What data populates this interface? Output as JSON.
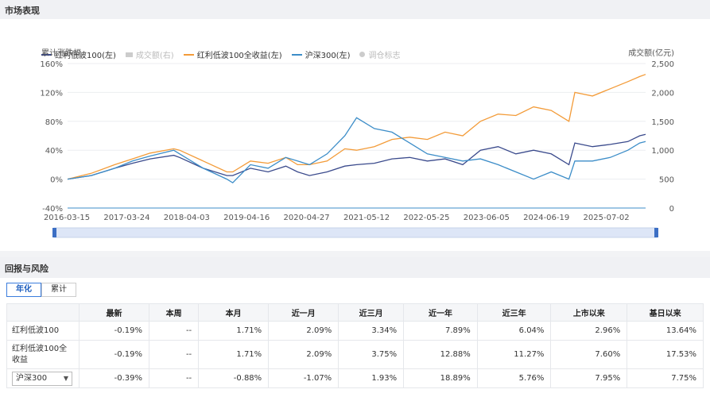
{
  "market_section": {
    "title": "市场表现"
  },
  "return_section": {
    "title": "回报与风险"
  },
  "legend": [
    {
      "label": "红利低波100(左)",
      "color": "#3a4a8c",
      "type": "line",
      "active": true
    },
    {
      "label": "成交额(右)",
      "color": "#cccccc",
      "type": "bar",
      "active": false
    },
    {
      "label": "红利低波100全收益(左)",
      "color": "#f39b38",
      "type": "line",
      "active": true
    },
    {
      "label": "沪深300(左)",
      "color": "#3c8dc8",
      "type": "line",
      "active": true
    },
    {
      "label": "调仓标志",
      "color": "#cccccc",
      "type": "dot",
      "active": false
    }
  ],
  "chart_data": {
    "type": "line",
    "ylabel": "累计涨跌幅",
    "y2label": "成交额(亿元)",
    "ylim": [
      -40,
      160
    ],
    "y_ticks": [
      "160%",
      "120%",
      "80%",
      "40%",
      "0%",
      "-40%"
    ],
    "y2lim": [
      0,
      2500
    ],
    "y2_ticks": [
      "2,500",
      "2,000",
      "1,500",
      "1,000",
      "500",
      "0"
    ],
    "x_ticks": [
      "2016-03-15",
      "2017-03-24",
      "2018-04-03",
      "2019-04-16",
      "2020-04-27",
      "2021-05-12",
      "2022-05-25",
      "2023-06-05",
      "2024-06-19",
      "2025-07-02"
    ],
    "x": [
      2016.2,
      2016.6,
      2017.0,
      2017.3,
      2017.6,
      2018.0,
      2018.1,
      2018.5,
      2018.9,
      2019.0,
      2019.3,
      2019.6,
      2019.9,
      2020.1,
      2020.3,
      2020.6,
      2020.9,
      2021.1,
      2021.4,
      2021.7,
      2022.0,
      2022.3,
      2022.6,
      2022.9,
      2023.2,
      2023.5,
      2023.8,
      2024.1,
      2024.4,
      2024.7,
      2024.8,
      2025.1,
      2025.4,
      2025.7,
      2025.9,
      2026.0
    ],
    "series": [
      {
        "name": "红利低波100",
        "color": "#3a4a8c",
        "values": [
          0,
          5,
          15,
          22,
          28,
          33,
          30,
          15,
          5,
          5,
          15,
          10,
          18,
          10,
          5,
          10,
          18,
          20,
          22,
          28,
          30,
          25,
          28,
          20,
          40,
          45,
          35,
          40,
          35,
          20,
          50,
          45,
          48,
          52,
          60,
          62
        ]
      },
      {
        "name": "红利低波100全收益",
        "color": "#f39b38",
        "values": [
          0,
          8,
          20,
          28,
          36,
          42,
          40,
          25,
          10,
          10,
          25,
          22,
          30,
          20,
          20,
          25,
          42,
          40,
          45,
          55,
          58,
          55,
          65,
          60,
          80,
          90,
          88,
          100,
          95,
          80,
          120,
          115,
          125,
          135,
          142,
          145
        ]
      },
      {
        "name": "沪深300",
        "color": "#3c8dc8",
        "values": [
          0,
          5,
          15,
          25,
          32,
          40,
          35,
          15,
          0,
          -5,
          20,
          15,
          30,
          25,
          20,
          35,
          60,
          85,
          70,
          65,
          50,
          35,
          30,
          25,
          28,
          20,
          10,
          0,
          10,
          0,
          25,
          25,
          30,
          40,
          50,
          52
        ]
      }
    ]
  },
  "tabs": {
    "annual": "年化",
    "cumulative": "累计"
  },
  "table": {
    "headers": [
      "",
      "最新",
      "本周",
      "本月",
      "近一月",
      "近三月",
      "近一年",
      "近三年",
      "上市以来",
      "基日以来"
    ],
    "rows": [
      {
        "name": "红利低波100",
        "cells": [
          {
            "v": "-0.19%",
            "c": "neg"
          },
          {
            "v": "--",
            "c": ""
          },
          {
            "v": "1.71%",
            "c": "pos"
          },
          {
            "v": "2.09%",
            "c": "pos"
          },
          {
            "v": "3.34%",
            "c": "pos"
          },
          {
            "v": "7.89%",
            "c": "pos"
          },
          {
            "v": "6.04%",
            "c": "pos"
          },
          {
            "v": "2.96%",
            "c": "pos"
          },
          {
            "v": "13.64%",
            "c": "pos"
          }
        ]
      },
      {
        "name": "红利低波100全收益",
        "cells": [
          {
            "v": "-0.19%",
            "c": "neg"
          },
          {
            "v": "--",
            "c": ""
          },
          {
            "v": "1.71%",
            "c": "pos"
          },
          {
            "v": "2.09%",
            "c": "pos"
          },
          {
            "v": "3.75%",
            "c": "pos"
          },
          {
            "v": "12.88%",
            "c": "pos"
          },
          {
            "v": "11.27%",
            "c": "pos"
          },
          {
            "v": "7.60%",
            "c": "pos"
          },
          {
            "v": "17.53%",
            "c": "pos"
          }
        ]
      },
      {
        "name": "沪深300",
        "select": true,
        "cells": [
          {
            "v": "-0.39%",
            "c": "neg"
          },
          {
            "v": "--",
            "c": ""
          },
          {
            "v": "-0.88%",
            "c": "neg"
          },
          {
            "v": "-1.07%",
            "c": "neg"
          },
          {
            "v": "1.93%",
            "c": "pos"
          },
          {
            "v": "18.89%",
            "c": "pos"
          },
          {
            "v": "5.76%",
            "c": "pos"
          },
          {
            "v": "7.95%",
            "c": "pos"
          },
          {
            "v": "7.75%",
            "c": "pos"
          }
        ]
      }
    ]
  }
}
